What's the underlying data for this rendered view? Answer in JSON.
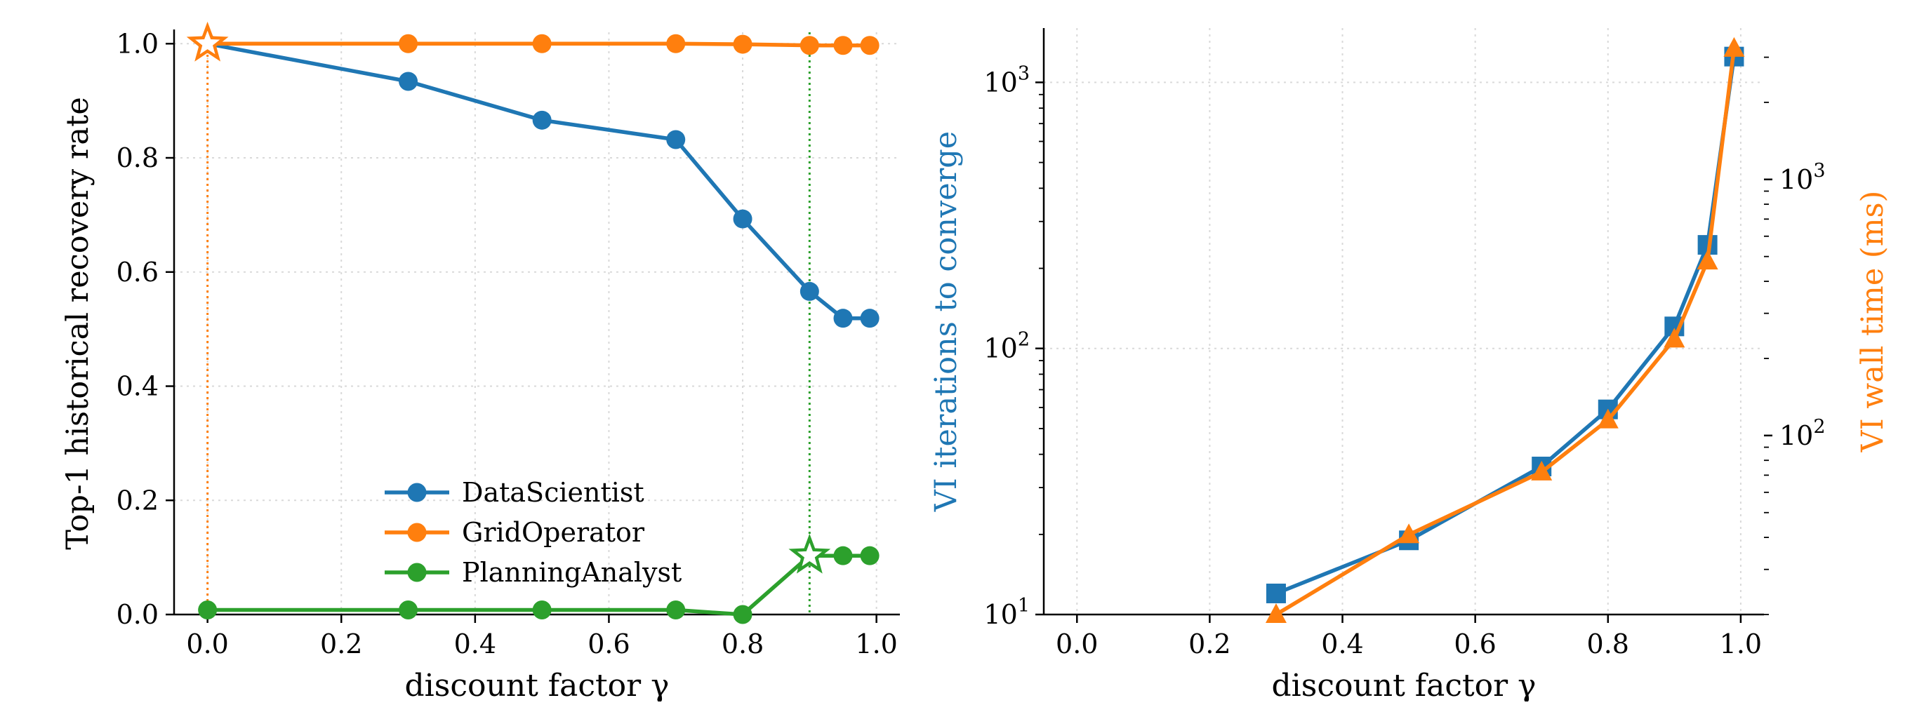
{
  "colors": {
    "blue": "#1f77b4",
    "orange": "#ff7f0e",
    "green": "#2ca02c",
    "grid": "#d9d9d9",
    "axis": "#000000",
    "background": "#ffffff"
  },
  "chart_data": [
    {
      "type": "line",
      "xlabel": "discount factor  γ",
      "ylabel": "Top-1 historical recovery rate",
      "xlim": [
        -0.05,
        1.035
      ],
      "ylim": [
        0.0,
        1.02
      ],
      "grid": true,
      "legend_position": "lower-center",
      "x_ticks": [
        0.0,
        0.2,
        0.4,
        0.6,
        0.8,
        1.0
      ],
      "x_tick_labels": [
        "0.0",
        "0.2",
        "0.4",
        "0.6",
        "0.8",
        "1.0"
      ],
      "y_ticks": [
        0.0,
        0.2,
        0.4,
        0.6,
        0.8,
        1.0
      ],
      "y_tick_labels": [
        "0.0",
        "0.2",
        "0.4",
        "0.6",
        "0.8",
        "1.0"
      ],
      "x": [
        0.0,
        0.3,
        0.5,
        0.7,
        0.8,
        0.9,
        0.95,
        0.99
      ],
      "series": [
        {
          "name": "DataScientist",
          "color": "#1f77b4",
          "marker": "circle",
          "values": [
            1.0,
            0.934,
            0.866,
            0.832,
            0.693,
            0.566,
            0.519,
            0.519
          ]
        },
        {
          "name": "GridOperator",
          "color": "#ff7f0e",
          "marker": "circle",
          "values": [
            1.0,
            1.0,
            1.0,
            1.0,
            0.999,
            0.997,
            0.997,
            0.997
          ]
        },
        {
          "name": "PlanningAnalyst",
          "color": "#2ca02c",
          "marker": "circle",
          "values": [
            0.008,
            0.008,
            0.008,
            0.008,
            0.0,
            0.103,
            0.103,
            0.103
          ]
        }
      ],
      "highlights": [
        {
          "series": "GridOperator",
          "x": 0.0,
          "y": 1.0,
          "marker": "star",
          "color": "#ff7f0e"
        },
        {
          "series": "PlanningAnalyst",
          "x": 0.9,
          "y": 0.103,
          "marker": "star",
          "color": "#2ca02c"
        }
      ],
      "vlines": [
        {
          "x": 0.0,
          "color": "#ff7f0e",
          "style": "dotted"
        },
        {
          "x": 0.9,
          "color": "#2ca02c",
          "style": "dotted"
        }
      ]
    },
    {
      "type": "line",
      "xlabel": "discount factor  γ",
      "ylabel": "VI iterations to converge",
      "ylabel_right": "VI wall time (ms)",
      "xlim": [
        -0.05,
        1.035
      ],
      "ylim": [
        10,
        1600
      ],
      "y_scale": "log",
      "ylim_right": [
        20,
        3900
      ],
      "y_right_scale": "log",
      "grid": true,
      "x_ticks": [
        0.0,
        0.2,
        0.4,
        0.6,
        0.8,
        1.0
      ],
      "x_tick_labels": [
        "0.0",
        "0.2",
        "0.4",
        "0.6",
        "0.8",
        "1.0"
      ],
      "y_ticks": [
        10,
        100,
        1000
      ],
      "y_tick_labels": [
        {
          "base": "10",
          "exp": "1"
        },
        {
          "base": "10",
          "exp": "2"
        },
        {
          "base": "10",
          "exp": "3"
        }
      ],
      "y_right_ticks": [
        100,
        1000
      ],
      "y_right_tick_labels": [
        {
          "base": "10",
          "exp": "2"
        },
        {
          "base": "10",
          "exp": "3"
        }
      ],
      "x": [
        0.3,
        0.5,
        0.7,
        0.8,
        0.9,
        0.95,
        0.99
      ],
      "series": [
        {
          "axis": "left",
          "color": "#1f77b4",
          "marker": "square",
          "values": [
            12,
            19,
            36,
            59,
            121,
            245,
            1250
          ]
        },
        {
          "axis": "right",
          "color": "#ff7f0e",
          "marker": "triangle",
          "values": [
            20,
            41,
            72,
            115,
            238,
            480,
            3250
          ]
        }
      ]
    }
  ]
}
